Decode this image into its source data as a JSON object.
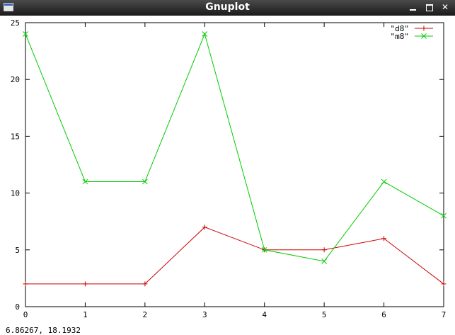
{
  "window": {
    "title": "Gnuplot",
    "icon": "app-window-icon",
    "controls": [
      {
        "name": "minimize",
        "icon": "minimize-icon"
      },
      {
        "name": "maximize",
        "icon": "maximize-icon"
      },
      {
        "name": "close",
        "icon": "close-icon",
        "glyph": "✕"
      }
    ]
  },
  "status": {
    "coordinates": "6.86267,  18.1932"
  },
  "chart_data": {
    "type": "line",
    "xlim": [
      0,
      7
    ],
    "ylim": [
      0,
      25
    ],
    "x_ticks": [
      0,
      1,
      2,
      3,
      4,
      5,
      6,
      7
    ],
    "y_ticks": [
      0,
      5,
      10,
      15,
      20,
      25
    ],
    "grid": false,
    "legend_position": "top-right",
    "x": [
      0,
      1,
      2,
      3,
      4,
      5,
      6,
      7
    ],
    "series": [
      {
        "name": "\"d8\"",
        "color": "#cc0000",
        "marker": "plus",
        "values": [
          2,
          2,
          2,
          7,
          5,
          5,
          6,
          2
        ]
      },
      {
        "name": "\"m8\"",
        "color": "#00cc00",
        "marker": "cross",
        "values": [
          24,
          11,
          11,
          24,
          5,
          4,
          11,
          8
        ]
      }
    ]
  }
}
